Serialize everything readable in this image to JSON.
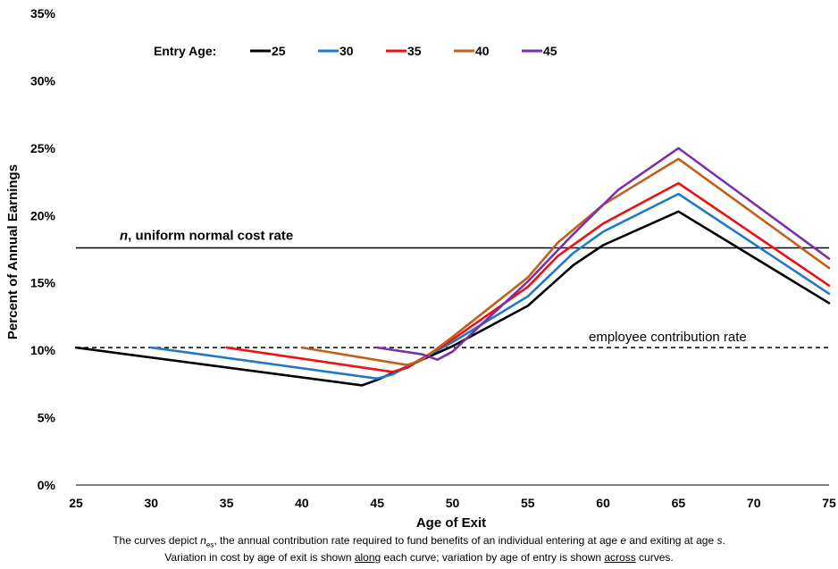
{
  "chart_data": {
    "type": "line",
    "xlabel": "Age of Exit",
    "ylabel": "Percent of Annual Earnings",
    "xlim": [
      25,
      75
    ],
    "ylim": [
      0,
      35
    ],
    "x_ticks": [
      "25",
      "30",
      "35",
      "40",
      "45",
      "50",
      "55",
      "60",
      "65",
      "70",
      "75"
    ],
    "y_ticks": [
      "0%",
      "5%",
      "10%",
      "15%",
      "20%",
      "25%",
      "30%",
      "35%"
    ],
    "grid": false,
    "legend": {
      "title": "Entry Age:",
      "placement": "top-left"
    },
    "series": [
      {
        "name": "25",
        "color": "#000000",
        "x": [
          25,
          44,
          45,
          50,
          55,
          58,
          60,
          65,
          75
        ],
        "y": [
          10.2,
          7.4,
          7.8,
          10.3,
          13.3,
          16.3,
          17.8,
          20.3,
          13.5
        ]
      },
      {
        "name": "30",
        "color": "#1f78c8",
        "x": [
          30,
          45,
          46,
          50,
          55,
          58,
          60,
          65,
          75
        ],
        "y": [
          10.2,
          7.9,
          8.2,
          10.6,
          14.0,
          17.2,
          18.8,
          21.6,
          14.2
        ]
      },
      {
        "name": "35",
        "color": "#ee1111",
        "x": [
          35,
          46,
          47,
          50,
          55,
          57,
          60,
          65,
          75
        ],
        "y": [
          10.2,
          8.4,
          8.7,
          10.8,
          14.7,
          17.0,
          19.4,
          22.4,
          14.8
        ]
      },
      {
        "name": "40",
        "color": "#c0601a",
        "x": [
          40,
          47,
          48,
          50,
          55,
          57,
          60,
          65,
          75
        ],
        "y": [
          10.2,
          8.9,
          9.3,
          11.0,
          15.4,
          18.0,
          20.8,
          24.2,
          16.1
        ]
      },
      {
        "name": "45",
        "color": "#7b2fb0",
        "x": [
          45,
          48,
          49,
          50,
          52,
          55,
          58,
          61,
          65,
          75
        ],
        "y": [
          10.2,
          9.7,
          9.3,
          9.9,
          12.0,
          15.1,
          18.6,
          21.9,
          25.0,
          16.8
        ]
      }
    ],
    "reference_lines": [
      {
        "label_italic": "n",
        "label": ", uniform normal cost rate",
        "y": 17.6,
        "style": "solid"
      },
      {
        "label": "employee contribution rate",
        "y": 10.2,
        "style": "dashed"
      }
    ]
  },
  "caption": {
    "line1_a": "The curves depict ",
    "line1_n": "n",
    "line1_sub": "es",
    "line1_b": ", the annual contribution rate required to fund benefits of an individual entering at age ",
    "line1_e": "e",
    "line1_c": " and exiting at age ",
    "line1_s": "s",
    "line1_d": ".",
    "line2_a": "Variation in cost by age of exit is shown ",
    "line2_along": "along",
    "line2_b": " each curve;  variation by age of entry is shown ",
    "line2_across": "across",
    "line2_c": " curves."
  }
}
